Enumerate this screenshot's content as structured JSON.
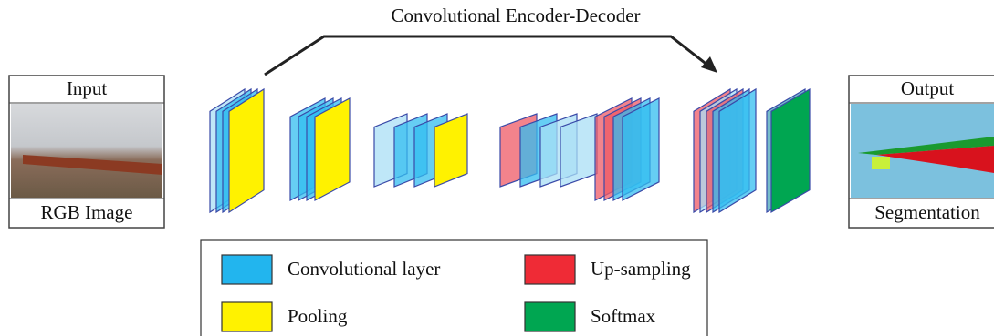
{
  "title": "Convolutional Encoder-Decoder",
  "input": {
    "header": "Input",
    "caption": "RGB Image"
  },
  "output": {
    "header": "Output",
    "caption": "Segmentation"
  },
  "legend": [
    {
      "label": "Convolutional layer",
      "color": "#22b5ee"
    },
    {
      "label": "Pooling",
      "color": "#fff200"
    },
    {
      "label": "Up-sampling",
      "color": "#ef2b36"
    },
    {
      "label": "Softmax",
      "color": "#00a651"
    }
  ]
}
